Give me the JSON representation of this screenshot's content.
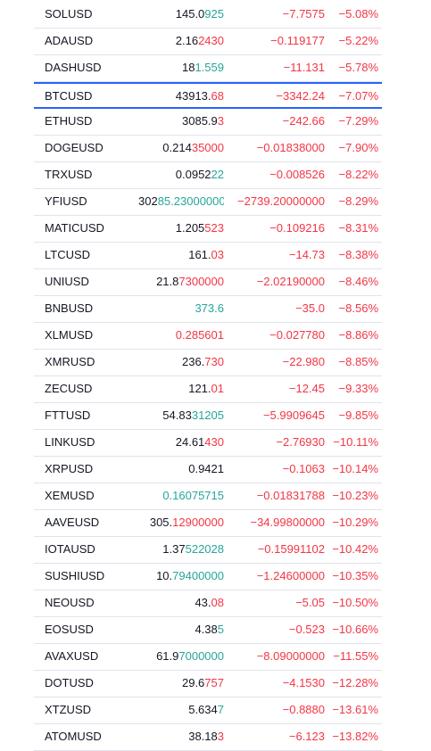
{
  "colors": {
    "up": "#26a69a",
    "down": "#f23645",
    "plain": "#131722"
  },
  "selected_row": 3,
  "rows": [
    {
      "symbol": "SOLUSD",
      "price": [
        {
          "text": "145.0",
          "tone": "plain"
        },
        {
          "text": "925",
          "tone": "up"
        }
      ],
      "change": "−7.7575",
      "change_pct": "−5.08%"
    },
    {
      "symbol": "ADAUSD",
      "price": [
        {
          "text": "2.16",
          "tone": "plain"
        },
        {
          "text": "2430",
          "tone": "down"
        }
      ],
      "change": "−0.119177",
      "change_pct": "−5.22%"
    },
    {
      "symbol": "DASHUSD",
      "price": [
        {
          "text": "18",
          "tone": "plain"
        },
        {
          "text": "1.559",
          "tone": "up"
        }
      ],
      "change": "−11.131",
      "change_pct": "−5.78%"
    },
    {
      "symbol": "BTCUSD",
      "price": [
        {
          "text": "43913.",
          "tone": "plain"
        },
        {
          "text": "68",
          "tone": "down"
        }
      ],
      "change": "−3342.24",
      "change_pct": "−7.07%"
    },
    {
      "symbol": "ETHUSD",
      "price": [
        {
          "text": "3085.9",
          "tone": "plain"
        },
        {
          "text": "3",
          "tone": "down"
        }
      ],
      "change": "−242.66",
      "change_pct": "−7.29%"
    },
    {
      "symbol": "DOGEUSD",
      "price": [
        {
          "text": "0.214",
          "tone": "plain"
        },
        {
          "text": "35000",
          "tone": "down"
        }
      ],
      "change": "−0.01838000",
      "change_pct": "−7.90%"
    },
    {
      "symbol": "TRXUSD",
      "price": [
        {
          "text": "0.0952",
          "tone": "plain"
        },
        {
          "text": "22",
          "tone": "up"
        }
      ],
      "change": "−0.008526",
      "change_pct": "−8.22%"
    },
    {
      "symbol": "YFIUSD",
      "price": [
        {
          "text": "302",
          "tone": "plain"
        },
        {
          "text": "85.23000000",
          "tone": "up"
        }
      ],
      "change": "−2739.20000000",
      "change_pct": "−8.29%"
    },
    {
      "symbol": "MATICUSD",
      "price": [
        {
          "text": "1.205",
          "tone": "plain"
        },
        {
          "text": "523",
          "tone": "down"
        }
      ],
      "change": "−0.109216",
      "change_pct": "−8.31%"
    },
    {
      "symbol": "LTCUSD",
      "price": [
        {
          "text": "161.",
          "tone": "plain"
        },
        {
          "text": "03",
          "tone": "down"
        }
      ],
      "change": "−14.73",
      "change_pct": "−8.38%"
    },
    {
      "symbol": "UNIUSD",
      "price": [
        {
          "text": "21.8",
          "tone": "plain"
        },
        {
          "text": "7300000",
          "tone": "down"
        }
      ],
      "change": "−2.02190000",
      "change_pct": "−8.46%"
    },
    {
      "symbol": "BNBUSD",
      "price": [
        {
          "text": "373.6",
          "tone": "up"
        }
      ],
      "change": "−35.0",
      "change_pct": "−8.56%"
    },
    {
      "symbol": "XLMUSD",
      "price": [
        {
          "text": "0.285601",
          "tone": "down"
        }
      ],
      "change": "−0.027780",
      "change_pct": "−8.86%"
    },
    {
      "symbol": "XMRUSD",
      "price": [
        {
          "text": "236.",
          "tone": "plain"
        },
        {
          "text": "730",
          "tone": "down"
        }
      ],
      "change": "−22.980",
      "change_pct": "−8.85%"
    },
    {
      "symbol": "ZECUSD",
      "price": [
        {
          "text": "121.",
          "tone": "plain"
        },
        {
          "text": "01",
          "tone": "down"
        }
      ],
      "change": "−12.45",
      "change_pct": "−9.33%"
    },
    {
      "symbol": "FTTUSD",
      "price": [
        {
          "text": "54.83",
          "tone": "plain"
        },
        {
          "text": "31205",
          "tone": "up"
        }
      ],
      "change": "−5.9909645",
      "change_pct": "−9.85%"
    },
    {
      "symbol": "LINKUSD",
      "price": [
        {
          "text": "24.61",
          "tone": "plain"
        },
        {
          "text": "430",
          "tone": "down"
        }
      ],
      "change": "−2.76930",
      "change_pct": "−10.11%"
    },
    {
      "symbol": "XRPUSD",
      "price": [
        {
          "text": "0.9421",
          "tone": "plain"
        }
      ],
      "change": "−0.1063",
      "change_pct": "−10.14%"
    },
    {
      "symbol": "XEMUSD",
      "price": [
        {
          "text": "0.16075715",
          "tone": "up"
        }
      ],
      "change": "−0.01831788",
      "change_pct": "−10.23%"
    },
    {
      "symbol": "AAVEUSD",
      "price": [
        {
          "text": "305.",
          "tone": "plain"
        },
        {
          "text": "12900000",
          "tone": "down"
        }
      ],
      "change": "−34.99800000",
      "change_pct": "−10.29%"
    },
    {
      "symbol": "IOTAUSD",
      "price": [
        {
          "text": "1.37",
          "tone": "plain"
        },
        {
          "text": "522028",
          "tone": "up"
        }
      ],
      "change": "−0.15991102",
      "change_pct": "−10.42%"
    },
    {
      "symbol": "SUSHIUSD",
      "price": [
        {
          "text": "10.",
          "tone": "plain"
        },
        {
          "text": "79400000",
          "tone": "up"
        }
      ],
      "change": "−1.24600000",
      "change_pct": "−10.35%"
    },
    {
      "symbol": "NEOUSD",
      "price": [
        {
          "text": "43.",
          "tone": "plain"
        },
        {
          "text": "08",
          "tone": "down"
        }
      ],
      "change": "−5.05",
      "change_pct": "−10.50%"
    },
    {
      "symbol": "EOSUSD",
      "price": [
        {
          "text": "4.38",
          "tone": "plain"
        },
        {
          "text": "5",
          "tone": "up"
        }
      ],
      "change": "−0.523",
      "change_pct": "−10.66%"
    },
    {
      "symbol": "AVAXUSD",
      "price": [
        {
          "text": "61.9",
          "tone": "plain"
        },
        {
          "text": "7000000",
          "tone": "up"
        }
      ],
      "change": "−8.09000000",
      "change_pct": "−11.55%"
    },
    {
      "symbol": "DOTUSD",
      "price": [
        {
          "text": "29.6",
          "tone": "plain"
        },
        {
          "text": "757",
          "tone": "down"
        }
      ],
      "change": "−4.1530",
      "change_pct": "−12.28%"
    },
    {
      "symbol": "XTZUSD",
      "price": [
        {
          "text": "5.634",
          "tone": "plain"
        },
        {
          "text": "7",
          "tone": "up"
        }
      ],
      "change": "−0.8880",
      "change_pct": "−13.61%"
    },
    {
      "symbol": "ATOMUSD",
      "price": [
        {
          "text": "38.18",
          "tone": "plain"
        },
        {
          "text": "3",
          "tone": "down"
        }
      ],
      "change": "−6.123",
      "change_pct": "−13.82%"
    }
  ]
}
